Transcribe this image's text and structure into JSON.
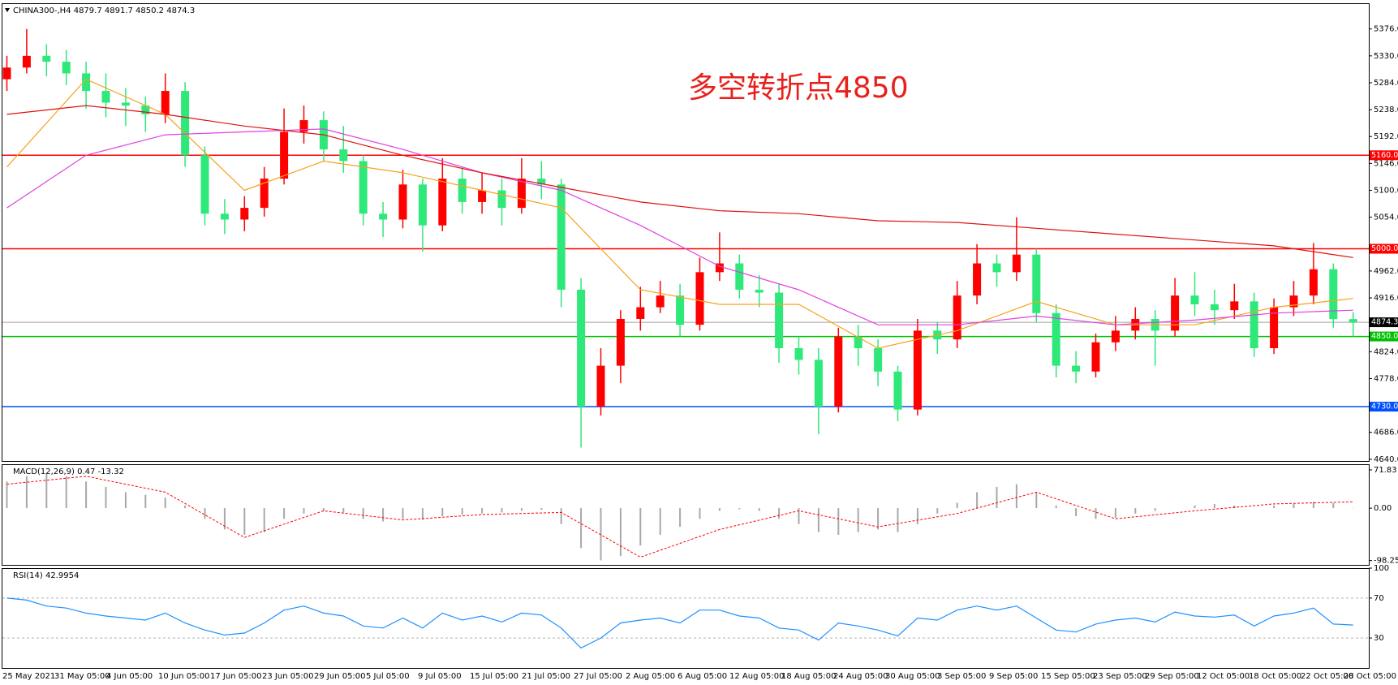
{
  "chart_data": [
    {
      "type": "candlestick",
      "title": "CHINA300-,H4 4879.7 4891.7 4850.2 4874.3",
      "annotation": "多空转折点4850",
      "open": [
        5290,
        5310,
        5330,
        5320,
        5300,
        5270,
        5250,
        5245,
        5230,
        5270,
        5160,
        5060,
        5050,
        5070,
        5120,
        5200,
        5220,
        5170,
        5150,
        5060,
        5050,
        5110,
        5040,
        5120,
        5080,
        5100,
        5070,
        5120,
        5110,
        4930,
        4730,
        4800,
        4880,
        4900,
        4920,
        4870,
        4960,
        4975,
        4930,
        4925,
        4830,
        4810,
        4730,
        4850,
        4830,
        4790,
        4725,
        4860,
        4845,
        4920,
        4975,
        4960,
        4990,
        4890,
        4800,
        4790,
        4840,
        4860,
        4880,
        4860,
        4920,
        4905,
        4895,
        4910,
        4830,
        4900,
        4920,
        4965,
        4879.7
      ],
      "high": [
        5330,
        5376,
        5350,
        5340,
        5320,
        5300,
        5275,
        5260,
        5300,
        5285,
        5175,
        5085,
        5090,
        5140,
        5240,
        5245,
        5235,
        5210,
        5160,
        5080,
        5135,
        5120,
        5155,
        5140,
        5130,
        5120,
        5155,
        5150,
        5120,
        4950,
        4830,
        4895,
        4935,
        4945,
        4940,
        4985,
        5028,
        4990,
        4955,
        4940,
        4850,
        4830,
        4865,
        4870,
        4845,
        4800,
        4880,
        4875,
        4945,
        5008,
        4990,
        5054,
        5000,
        4905,
        4825,
        4855,
        4885,
        4900,
        4895,
        4950,
        4960,
        4930,
        4940,
        4925,
        4915,
        4945,
        5010,
        4975,
        4891.7
      ],
      "low": [
        5270,
        5300,
        5295,
        5280,
        5240,
        5225,
        5210,
        5200,
        5215,
        5140,
        5040,
        5025,
        5030,
        5055,
        5110,
        5180,
        5150,
        5130,
        5040,
        5020,
        5035,
        4995,
        5030,
        5060,
        5060,
        5040,
        5060,
        5085,
        4900,
        4660,
        4715,
        4770,
        4860,
        4890,
        4850,
        4860,
        4945,
        4915,
        4900,
        4805,
        4785,
        4683,
        4720,
        4800,
        4765,
        4705,
        4715,
        4820,
        4830,
        4905,
        4935,
        4945,
        4875,
        4780,
        4770,
        4780,
        4825,
        4845,
        4800,
        4850,
        4885,
        4870,
        4880,
        4815,
        4820,
        4885,
        4905,
        4865,
        4850.2
      ],
      "close": [
        5310,
        5330,
        5320,
        5300,
        5270,
        5250,
        5245,
        5230,
        5270,
        5160,
        5060,
        5050,
        5070,
        5120,
        5200,
        5220,
        5170,
        5150,
        5060,
        5050,
        5110,
        5040,
        5120,
        5080,
        5100,
        5070,
        5120,
        5110,
        4930,
        4730,
        4800,
        4880,
        4900,
        4920,
        4870,
        4960,
        4975,
        4930,
        4925,
        4830,
        4810,
        4730,
        4850,
        4830,
        4790,
        4725,
        4860,
        4845,
        4920,
        4975,
        4960,
        4990,
        4890,
        4800,
        4790,
        4840,
        4860,
        4880,
        4860,
        4920,
        4905,
        4895,
        4910,
        4830,
        4900,
        4920,
        4965,
        4879.7,
        4874.3
      ],
      "up_color": "#ff0000",
      "down_color": "#2ee87a",
      "series": [
        {
          "color": "#f7a21b",
          "x": [
            0,
            4,
            8,
            12,
            16,
            20,
            24,
            28,
            32,
            36,
            40,
            44,
            48,
            52,
            56,
            60,
            64,
            68
          ],
          "values": [
            5140,
            5290,
            5230,
            5100,
            5150,
            5130,
            5100,
            5070,
            4930,
            4905,
            4905,
            4830,
            4860,
            4910,
            4870,
            4870,
            4900,
            4915
          ]
        },
        {
          "color": "#e040e0",
          "x": [
            0,
            4,
            8,
            12,
            16,
            20,
            24,
            28,
            32,
            36,
            40,
            44,
            48,
            52,
            56,
            60,
            64,
            68
          ],
          "values": [
            5070,
            5160,
            5195,
            5200,
            5205,
            5170,
            5130,
            5100,
            5040,
            4970,
            4930,
            4870,
            4870,
            4885,
            4870,
            4878,
            4890,
            4895
          ]
        },
        {
          "color": "#e01010",
          "x": [
            0,
            4,
            8,
            12,
            16,
            20,
            24,
            28,
            32,
            36,
            40,
            44,
            48,
            52,
            56,
            60,
            64,
            68
          ],
          "values": [
            5230,
            5245,
            5230,
            5210,
            5195,
            5160,
            5130,
            5105,
            5080,
            5065,
            5060,
            5048,
            5045,
            5035,
            5025,
            5015,
            5005,
            4985
          ]
        }
      ],
      "levels": [
        {
          "value": 5160,
          "label": "5160.0",
          "color": "#ff0000"
        },
        {
          "value": 5000,
          "label": "5000.0",
          "color": "#ff0000"
        },
        {
          "value": 4874.3,
          "label": "4874.3",
          "color": "#a0a0a0",
          "label_color": "#000000"
        },
        {
          "value": 4850,
          "label": "4850.0",
          "color": "#00c000"
        },
        {
          "value": 4730,
          "label": "4730.0",
          "color": "#0050ff"
        }
      ],
      "ylim": [
        4637,
        5420
      ],
      "yticks": [
        {
          "value": 5376,
          "label": "5376.0"
        },
        {
          "value": 5330,
          "label": "5330.0"
        },
        {
          "value": 5284,
          "label": "5284.0"
        },
        {
          "value": 5238,
          "label": "5238.0"
        },
        {
          "value": 5192,
          "label": "5192.0"
        },
        {
          "value": 5146,
          "label": "5146.0"
        },
        {
          "value": 5100,
          "label": "5100.0"
        },
        {
          "value": 5054,
          "label": "5054.0"
        },
        {
          "value": 4962,
          "label": "4962.0"
        },
        {
          "value": 4916,
          "label": "4916.0"
        },
        {
          "value": 4824,
          "label": "4824.0"
        },
        {
          "value": 4778,
          "label": "4778.0"
        },
        {
          "value": 4686,
          "label": "4686.0"
        },
        {
          "value": 4640,
          "label": "4640.0"
        }
      ],
      "x_labels": [
        "25 May 2021",
        "31 May 05:00",
        "4 Jun 05:00",
        "10 Jun 05:00",
        "17 Jun 05:00",
        "23 Jun 05:00",
        "29 Jun 05:00",
        "5 Jul 05:00",
        "9 Jul 05:00",
        "15 Jul 05:00",
        "21 Jul 05:00",
        "27 Jul 05:00",
        "2 Aug 05:00",
        "6 Aug 05:00",
        "12 Aug 05:00",
        "18 Aug 05:00",
        "24 Aug 05:00",
        "30 Aug 05:00",
        "3 Sep 05:00",
        "9 Sep 05:00",
        "15 Sep 05:00",
        "23 Sep 05:00",
        "29 Sep 05:00",
        "12 Oct 05:00",
        "18 Oct 05:00",
        "22 Oct 05:00",
        "28 Oct 05:00"
      ]
    },
    {
      "type": "macd",
      "title": "MACD(12,26,9) 0.47 -13.32",
      "values": [
        50,
        60,
        65,
        60,
        50,
        40,
        30,
        25,
        20,
        5,
        -20,
        -40,
        -50,
        -45,
        -20,
        -10,
        -5,
        -8,
        -20,
        -25,
        -20,
        -22,
        -15,
        -12,
        -10,
        -8,
        -5,
        -3,
        -30,
        -75,
        -98,
        -90,
        -70,
        -50,
        -35,
        -20,
        -5,
        -2,
        -5,
        -20,
        -30,
        -45,
        -50,
        -45,
        -40,
        -45,
        -30,
        -10,
        10,
        30,
        40,
        45,
        30,
        5,
        -15,
        -20,
        -18,
        -10,
        -5,
        0,
        5,
        8,
        5,
        0,
        5,
        8,
        12,
        10,
        0.47
      ],
      "color": "#a8a8a8",
      "series": [
        {
          "color": "#ff0000",
          "x": [
            0,
            4,
            8,
            12,
            16,
            20,
            24,
            28,
            32,
            36,
            40,
            44,
            48,
            52,
            56,
            60,
            64,
            68
          ],
          "values": [
            45,
            60,
            30,
            -55,
            -5,
            -22,
            -12,
            -8,
            -92,
            -40,
            -5,
            -35,
            -10,
            30,
            -20,
            -5,
            8,
            12
          ]
        }
      ],
      "ylim": [
        -106.5,
        82.5
      ],
      "yticks": [
        71.83,
        {
          "value": 0,
          "label": "0.00"
        },
        -98.25
      ]
    },
    {
      "type": "rsi",
      "title": "RSI(14) 42.9954",
      "values": [
        70,
        68,
        62,
        60,
        55,
        52,
        50,
        48,
        55,
        45,
        38,
        33,
        35,
        45,
        58,
        62,
        55,
        52,
        42,
        40,
        50,
        40,
        55,
        48,
        52,
        46,
        55,
        53,
        40,
        20,
        30,
        45,
        48,
        50,
        45,
        58,
        58,
        52,
        50,
        40,
        38,
        28,
        45,
        42,
        38,
        32,
        50,
        48,
        58,
        62,
        58,
        62,
        50,
        38,
        36,
        44,
        48,
        50,
        46,
        56,
        52,
        51,
        53,
        42,
        52,
        55,
        60,
        44,
        42.9954
      ],
      "color": "#1e90ff",
      "ylim": [
        0,
        100
      ],
      "yticks": [
        100,
        70,
        30
      ],
      "levels": [
        70,
        30
      ]
    }
  ]
}
